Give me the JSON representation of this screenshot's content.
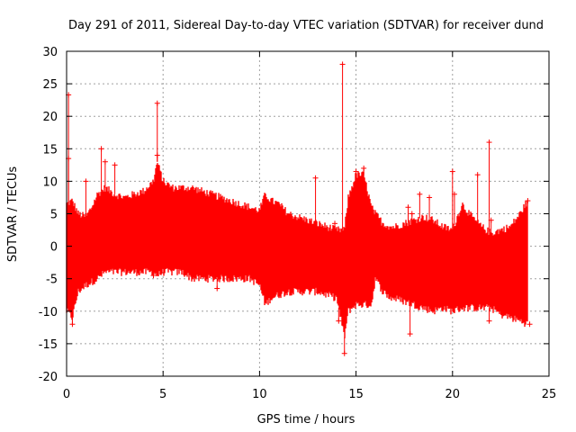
{
  "chart_data": {
    "type": "scatter",
    "title": "Day 291 of 2011, Sidereal Day-to-day VTEC variation (SDTVAR) for receiver dund",
    "xlabel": "GPS time / hours",
    "ylabel": "SDTVAR / TECUs",
    "xlim": [
      0,
      25
    ],
    "ylim": [
      -20,
      30
    ],
    "xticks": [
      0,
      5,
      10,
      15,
      20,
      25
    ],
    "yticks": [
      -20,
      -15,
      -10,
      -5,
      0,
      5,
      10,
      15,
      20,
      25,
      30
    ],
    "xtick_labels": [
      "0",
      "5",
      "10",
      "15",
      "20",
      "25"
    ],
    "ytick_labels": [
      "-20",
      "-15",
      "-10",
      "-5",
      "0",
      "5",
      "10",
      "15",
      "20",
      "25",
      "30"
    ],
    "grid": true,
    "marker": "+",
    "color": "#ff0000",
    "series": [
      {
        "name": "SDTVAR",
        "envelope": {
          "x": [
            0.0,
            0.3,
            0.6,
            1.0,
            1.3,
            1.6,
            2.0,
            2.5,
            3.0,
            3.5,
            4.0,
            4.5,
            4.7,
            5.0,
            5.5,
            6.0,
            6.5,
            7.0,
            7.5,
            8.0,
            8.5,
            9.0,
            9.5,
            10.0,
            10.3,
            10.6,
            11.0,
            11.5,
            12.0,
            12.5,
            13.0,
            13.5,
            14.0,
            14.4,
            14.6,
            15.0,
            15.4,
            15.8,
            16.0,
            16.4,
            16.8,
            17.0,
            17.5,
            18.0,
            18.5,
            19.0,
            19.5,
            20.0,
            20.5,
            21.0,
            21.5,
            22.0,
            22.5,
            23.0,
            23.5,
            23.9
          ],
          "ymax": [
            6.5,
            7.0,
            5.0,
            4.5,
            6.0,
            8.0,
            9.0,
            8.0,
            7.5,
            8.0,
            8.5,
            10.0,
            13.0,
            10.0,
            9.0,
            9.0,
            9.0,
            8.5,
            8.0,
            7.5,
            7.0,
            6.5,
            6.0,
            5.5,
            8.0,
            7.0,
            6.5,
            5.0,
            4.5,
            4.0,
            3.5,
            3.0,
            2.5,
            2.5,
            7.5,
            11.0,
            11.0,
            6.0,
            5.0,
            3.5,
            3.0,
            3.0,
            3.5,
            4.0,
            4.5,
            4.0,
            3.0,
            2.5,
            6.5,
            4.5,
            3.0,
            2.0,
            2.5,
            3.0,
            5.0,
            7.0
          ],
          "ymin": [
            -10.0,
            -11.0,
            -7.0,
            -6.0,
            -5.5,
            -5.0,
            -4.0,
            -4.0,
            -4.0,
            -4.0,
            -4.0,
            -4.0,
            -4.5,
            -4.0,
            -4.0,
            -4.0,
            -5.0,
            -5.0,
            -5.0,
            -5.0,
            -5.0,
            -5.0,
            -5.0,
            -6.0,
            -9.0,
            -8.0,
            -7.5,
            -7.0,
            -7.0,
            -7.0,
            -7.0,
            -7.5,
            -8.0,
            -14.0,
            -10.0,
            -9.0,
            -9.0,
            -9.0,
            -5.0,
            -7.0,
            -8.0,
            -8.0,
            -8.5,
            -9.0,
            -9.5,
            -10.0,
            -9.5,
            -10.0,
            -9.5,
            -9.5,
            -9.5,
            -9.5,
            -10.5,
            -11.0,
            -11.5,
            -12.0
          ]
        },
        "outliers": [
          {
            "x": 0.1,
            "y": 23.3
          },
          {
            "x": 0.1,
            "y": 13.5
          },
          {
            "x": 0.3,
            "y": -12.0
          },
          {
            "x": 1.0,
            "y": 10.0
          },
          {
            "x": 1.8,
            "y": 15.0
          },
          {
            "x": 2.0,
            "y": 13.0
          },
          {
            "x": 2.5,
            "y": 12.5
          },
          {
            "x": 4.7,
            "y": 22.0
          },
          {
            "x": 4.7,
            "y": 14.0
          },
          {
            "x": 4.5,
            "y": -4.5
          },
          {
            "x": 7.8,
            "y": -6.5
          },
          {
            "x": 12.9,
            "y": 10.5
          },
          {
            "x": 14.3,
            "y": 28.0
          },
          {
            "x": 14.4,
            "y": -16.5
          },
          {
            "x": 14.1,
            "y": -11.5
          },
          {
            "x": 13.9,
            "y": 3.5
          },
          {
            "x": 15.4,
            "y": 12.0
          },
          {
            "x": 15.0,
            "y": 11.5
          },
          {
            "x": 17.7,
            "y": 6.0
          },
          {
            "x": 17.9,
            "y": 5.0
          },
          {
            "x": 17.8,
            "y": -13.5
          },
          {
            "x": 18.3,
            "y": 8.0
          },
          {
            "x": 18.8,
            "y": 7.5
          },
          {
            "x": 20.0,
            "y": 11.5
          },
          {
            "x": 20.1,
            "y": 8.0
          },
          {
            "x": 21.3,
            "y": 11.0
          },
          {
            "x": 21.9,
            "y": 16.0
          },
          {
            "x": 21.9,
            "y": -11.5
          },
          {
            "x": 22.0,
            "y": 4.0
          },
          {
            "x": 22.5,
            "y": -4.0
          },
          {
            "x": 23.9,
            "y": 7.0
          },
          {
            "x": 24.0,
            "y": -12.0
          }
        ]
      }
    ]
  }
}
